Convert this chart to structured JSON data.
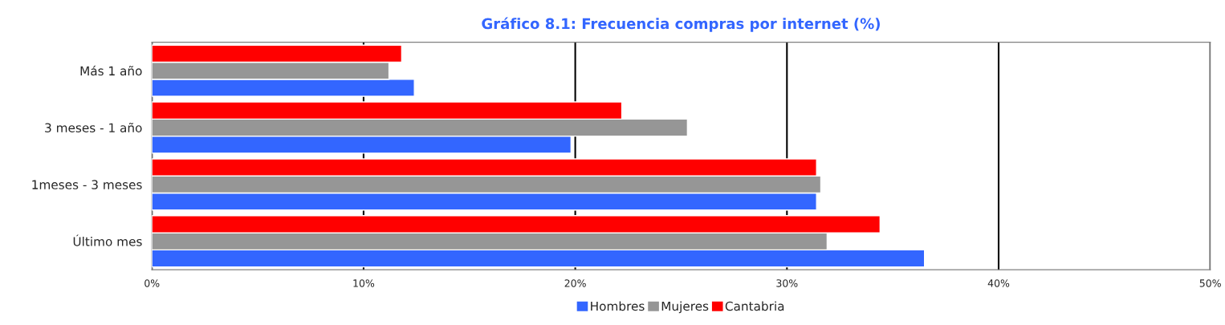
{
  "chart_data": {
    "type": "bar",
    "orientation": "horizontal",
    "title": "Gráfico 8.1: Frecuencia compras por internet (%)",
    "categories": [
      "Más 1 año",
      "3 meses - 1 año",
      "1meses - 3 meses",
      "Último mes"
    ],
    "series": [
      {
        "name": "Hombres",
        "color": "#3366ff",
        "values": [
          12.4,
          19.8,
          31.4,
          36.5
        ]
      },
      {
        "name": "Mujeres",
        "color": "#969696",
        "values": [
          11.2,
          25.3,
          31.6,
          31.9
        ]
      },
      {
        "name": "Cantabria",
        "color": "#ff0000",
        "values": [
          11.8,
          22.2,
          31.4,
          34.4
        ]
      }
    ],
    "xlim": [
      0,
      50
    ],
    "xticks": [
      {
        "value": 0,
        "label": "0%"
      },
      {
        "value": 10,
        "label": "10%"
      },
      {
        "value": 20,
        "label": "20%"
      },
      {
        "value": 30,
        "label": "30%"
      },
      {
        "value": 40,
        "label": "40%"
      },
      {
        "value": 50,
        "label": "50%"
      }
    ],
    "grid": "x",
    "legend": "bottom"
  }
}
